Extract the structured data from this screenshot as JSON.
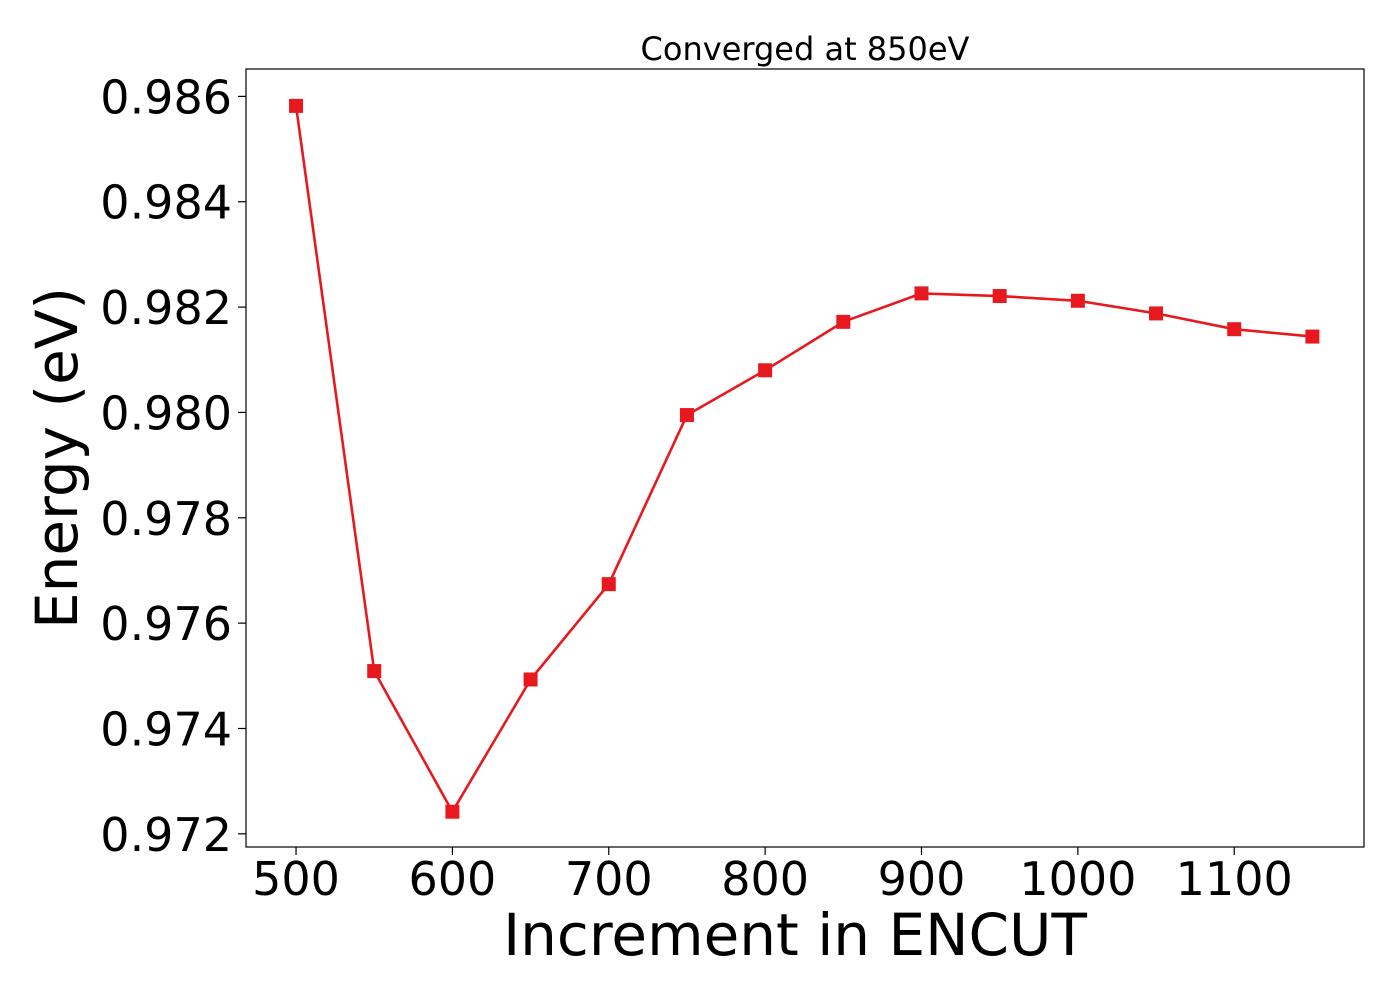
{
  "chart_data": {
    "type": "line",
    "title": "Converged at 850eV",
    "xlabel": "Increment in ENCUT",
    "ylabel": "Energy (eV)",
    "xlim": [
      468,
      1183
    ],
    "ylim": [
      0.97175,
      0.98652
    ],
    "x_ticks": [
      500,
      600,
      700,
      800,
      900,
      1000,
      1100
    ],
    "y_ticks": [
      0.972,
      0.974,
      0.976,
      0.978,
      0.98,
      0.982,
      0.984,
      0.986
    ],
    "y_tick_labels": [
      "0.972",
      "0.974",
      "0.976",
      "0.978",
      "0.980",
      "0.982",
      "0.984",
      "0.986"
    ],
    "grid": false,
    "series": [
      {
        "color": "#e8191e",
        "marker": "square",
        "x": [
          500,
          550,
          600,
          650,
          700,
          750,
          800,
          850,
          900,
          950,
          1000,
          1050,
          1100,
          1150
        ],
        "y": [
          0.98582,
          0.97509,
          0.97242,
          0.97493,
          0.97674,
          0.97995,
          0.9808,
          0.98172,
          0.98226,
          0.98221,
          0.98212,
          0.98188,
          0.98158,
          0.98144
        ]
      }
    ]
  }
}
